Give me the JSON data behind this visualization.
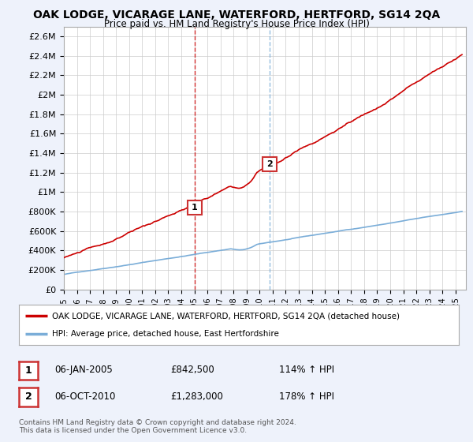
{
  "title": "OAK LODGE, VICARAGE LANE, WATERFORD, HERTFORD, SG14 2QA",
  "subtitle": "Price paid vs. HM Land Registry's House Price Index (HPI)",
  "bg_color": "#eef2fb",
  "plot_bg_color": "#ffffff",
  "ylim": [
    0,
    2700000
  ],
  "yticks": [
    0,
    200000,
    400000,
    600000,
    800000,
    1000000,
    1200000,
    1400000,
    1600000,
    1800000,
    2000000,
    2200000,
    2400000,
    2600000
  ],
  "ytick_labels": [
    "£0",
    "£200K",
    "£400K",
    "£600K",
    "£800K",
    "£1M",
    "£1.2M",
    "£1.4M",
    "£1.6M",
    "£1.8M",
    "£2M",
    "£2.2M",
    "£2.4M",
    "£2.6M"
  ],
  "xlim_start": 1995.0,
  "xlim_end": 2025.8,
  "purchase1_x": 2005.02,
  "purchase1_y": 842500,
  "purchase1_label": "1",
  "purchase2_x": 2010.75,
  "purchase2_y": 1283000,
  "purchase2_label": "2",
  "line_color_red": "#cc0000",
  "line_color_blue": "#7aadd8",
  "legend_line1": "OAK LODGE, VICARAGE LANE, WATERFORD, HERTFORD, SG14 2QA (detached house)",
  "legend_line2": "HPI: Average price, detached house, East Hertfordshire",
  "annotation1_date": "06-JAN-2005",
  "annotation1_price": "£842,500",
  "annotation1_hpi": "114% ↑ HPI",
  "annotation2_date": "06-OCT-2010",
  "annotation2_price": "£1,283,000",
  "annotation2_hpi": "178% ↑ HPI",
  "footer": "Contains HM Land Registry data © Crown copyright and database right 2024.\nThis data is licensed under the Open Government Licence v3.0."
}
